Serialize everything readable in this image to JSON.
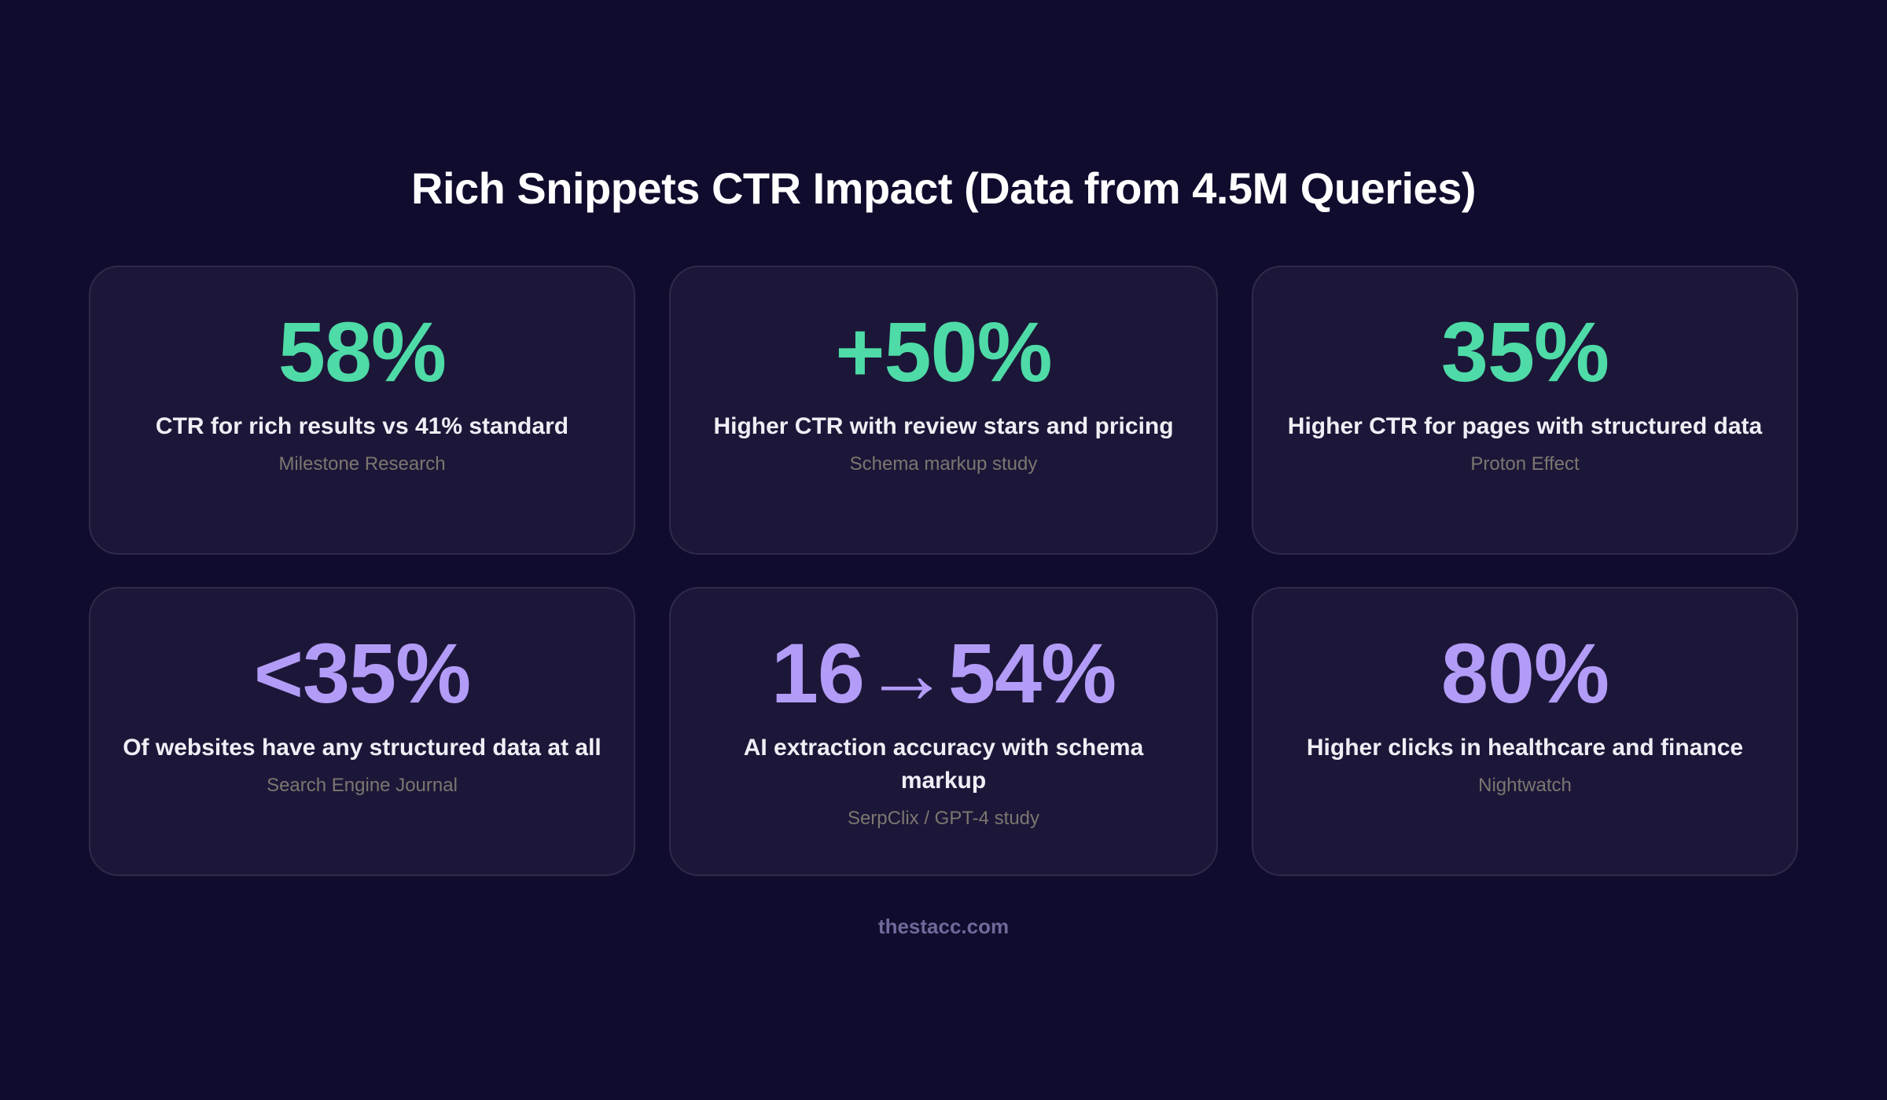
{
  "title": "Rich Snippets CTR Impact (Data from 4.5M Queries)",
  "colors": {
    "background": "#100c2e",
    "card": "#1c1738",
    "green": "#4edba7",
    "purple": "#b39cf7"
  },
  "cards": [
    {
      "stat": "58%",
      "color": "green",
      "description": "CTR for rich results vs 41% standard",
      "source": "Milestone Research"
    },
    {
      "stat": "+50%",
      "color": "green",
      "description": "Higher CTR with review stars and pricing",
      "source": "Schema markup study"
    },
    {
      "stat": "35%",
      "color": "green",
      "description": "Higher CTR for pages with structured data",
      "source": "Proton Effect"
    },
    {
      "stat": "<35%",
      "color": "purple",
      "description": "Of websites have any structured data at all",
      "source": "Search Engine Journal"
    },
    {
      "stat": "16→54%",
      "color": "purple",
      "description": "AI extraction accuracy with schema markup",
      "source": "SerpClix / GPT-4 study"
    },
    {
      "stat": "80%",
      "color": "purple",
      "description": "Higher clicks in healthcare and finance",
      "source": "Nightwatch"
    }
  ],
  "footer": "thestacc.com"
}
